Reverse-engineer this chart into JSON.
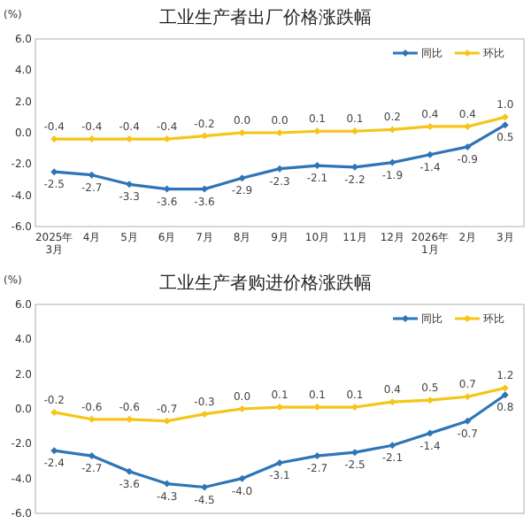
{
  "chart_data": [
    {
      "type": "line",
      "title": "工业生产者出厂价格涨跌幅",
      "ylabel": "(%)",
      "categories": [
        "2025年\n3月",
        "4月",
        "5月",
        "6月",
        "7月",
        "8月",
        "9月",
        "10月",
        "11月",
        "12月",
        "2026年\n1月",
        "2月",
        "3月"
      ],
      "ylim": [
        -6,
        6
      ],
      "yticks": [
        {
          "value": 6,
          "label": "6.0"
        },
        {
          "value": 4,
          "label": "4.0"
        },
        {
          "value": 2,
          "label": "2.0"
        },
        {
          "value": 0,
          "label": "0.0"
        },
        {
          "value": -2,
          "label": "-2.0"
        },
        {
          "value": -4,
          "label": "-4.0"
        },
        {
          "value": -6,
          "label": "-6.0"
        }
      ],
      "legend": "top right",
      "marker": "diamond",
      "grid": false,
      "series": [
        {
          "name": "同比",
          "color": "#2e75b6",
          "values": [
            -2.5,
            -2.7,
            -3.3,
            -3.6,
            -3.6,
            -2.9,
            -2.3,
            -2.1,
            -2.2,
            -1.9,
            -1.4,
            -0.9,
            0.5
          ],
          "value_labels": [
            "-2.5",
            "-2.7",
            "-3.3",
            "-3.6",
            "-3.6",
            "-2.9",
            "-2.3",
            "-2.1",
            "-2.2",
            "-1.9",
            "-1.4",
            "-0.9",
            "0.5"
          ]
        },
        {
          "name": "环比",
          "color": "#f5c518",
          "values": [
            -0.4,
            -0.4,
            -0.4,
            -0.4,
            -0.2,
            0.0,
            0.0,
            0.1,
            0.1,
            0.2,
            0.4,
            0.4,
            1.0
          ],
          "value_labels": [
            "-0.4",
            "-0.4",
            "-0.4",
            "-0.4",
            "-0.2",
            "0.0",
            "0.0",
            "0.1",
            "0.1",
            "0.2",
            "0.4",
            "0.4",
            "1.0"
          ]
        }
      ]
    },
    {
      "type": "line",
      "title": "工业生产者购进价格涨跌幅",
      "ylabel": "(%)",
      "categories": [
        null,
        null,
        null,
        null,
        null,
        null,
        null,
        null,
        null,
        null,
        null,
        null,
        null
      ],
      "tick_labels": "y",
      "ylim": [
        -6,
        6
      ],
      "yticks": [
        {
          "value": 6,
          "label": "6.0"
        },
        {
          "value": 4,
          "label": "4.0"
        },
        {
          "value": 2,
          "label": "2.0"
        },
        {
          "value": 0,
          "label": "0.0"
        },
        {
          "value": -2,
          "label": "-2.0"
        },
        {
          "value": -4,
          "label": "-4.0"
        },
        {
          "value": -6,
          "label": "-6.0"
        }
      ],
      "legend": "top right",
      "marker": "diamond",
      "grid": false,
      "series": [
        {
          "name": "同比",
          "color": "#2e75b6",
          "values": [
            -2.4,
            -2.7,
            -3.6,
            -4.3,
            -4.5,
            -4.0,
            -3.1,
            -2.7,
            -2.5,
            -2.1,
            -1.4,
            -0.7,
            0.8
          ],
          "value_labels": [
            "-2.4",
            "-2.7",
            "-3.6",
            "-4.3",
            "-4.5",
            "-4.0",
            "-3.1",
            "-2.7",
            "-2.5",
            "-2.1",
            "-1.4",
            "-0.7",
            "0.8"
          ]
        },
        {
          "name": "环比",
          "color": "#f5c518",
          "values": [
            -0.2,
            -0.6,
            -0.6,
            -0.7,
            -0.3,
            0.0,
            0.1,
            0.1,
            0.1,
            0.4,
            0.5,
            0.7,
            1.2
          ],
          "value_labels": [
            "-0.2",
            "-0.6",
            "-0.6",
            "-0.7",
            "-0.3",
            "0.0",
            "0.1",
            "0.1",
            "0.1",
            "0.4",
            "0.5",
            "0.7",
            "1.2"
          ]
        }
      ]
    }
  ]
}
